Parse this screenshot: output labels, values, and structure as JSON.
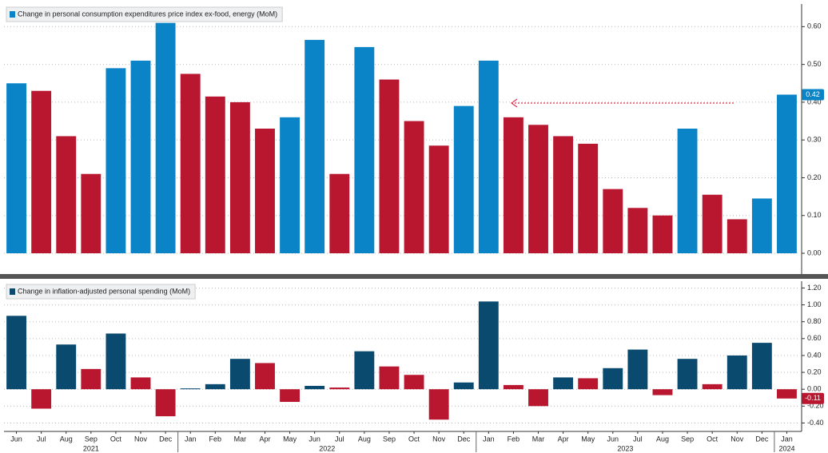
{
  "chart_data": [
    {
      "type": "bar",
      "series": [
        {
          "name": "Change in personal consumption expenditures price index ex-food, energy (MoM)",
          "values": [
            0.45,
            0.43,
            0.31,
            0.21,
            0.49,
            0.51,
            0.61,
            0.475,
            0.415,
            0.4,
            0.33,
            0.36,
            0.565,
            0.21,
            0.546,
            0.46,
            0.35,
            0.285,
            0.39,
            0.51,
            0.36,
            0.34,
            0.31,
            0.29,
            0.17,
            0.12,
            0.1,
            0.33,
            0.155,
            0.09,
            0.145,
            0.42
          ],
          "value_labels": [
            null,
            null,
            null,
            null,
            null,
            null,
            null,
            null,
            null,
            null,
            null,
            null,
            null,
            null,
            null,
            null,
            null,
            null,
            null,
            null,
            null,
            null,
            null,
            null,
            null,
            null,
            null,
            null,
            null,
            null,
            null,
            "0.42"
          ],
          "colors": [
            "#0a84c6",
            "#b8172f",
            "#b8172f",
            "#b8172f",
            "#0a84c6",
            "#0a84c6",
            "#0a84c6",
            "#b8172f",
            "#b8172f",
            "#b8172f",
            "#b8172f",
            "#0a84c6",
            "#0a84c6",
            "#b8172f",
            "#0a84c6",
            "#b8172f",
            "#b8172f",
            "#b8172f",
            "#0a84c6",
            "#0a84c6",
            "#b8172f",
            "#b8172f",
            "#b8172f",
            "#b8172f",
            "#b8172f",
            "#b8172f",
            "#b8172f",
            "#0a84c6",
            "#b8172f",
            "#b8172f",
            "#0a84c6",
            "#0a84c6"
          ],
          "legend_color": "#0a84c6"
        }
      ],
      "ylim": [
        -0.055,
        0.66
      ],
      "yticks": [
        {
          "value": 0,
          "label": "0.00"
        },
        {
          "value": 0.1,
          "label": "0.10"
        },
        {
          "value": 0.2,
          "label": "0.20"
        },
        {
          "value": 0.3,
          "label": "0.30"
        },
        {
          "value": 0.4,
          "label": "0.40"
        },
        {
          "value": 0.5,
          "label": "0.50"
        },
        {
          "value": 0.6,
          "label": "0.60"
        }
      ],
      "grid": true
    },
    {
      "type": "bar",
      "categories": [
        "Jun",
        "Jul",
        "Aug",
        "Sep",
        "Oct",
        "Nov",
        "Dec",
        "Jan",
        "Feb",
        "Mar",
        "Apr",
        "May",
        "Jun",
        "Jul",
        "Aug",
        "Sep",
        "Oct",
        "Nov",
        "Dec",
        "Jan",
        "Feb",
        "Mar",
        "Apr",
        "May",
        "Jun",
        "Jul",
        "Aug",
        "Sep",
        "Oct",
        "Nov",
        "Dec",
        "Jan"
      ],
      "years": [
        "2021",
        "2021",
        "2021",
        "2021",
        "2021",
        "2021",
        "2021",
        "2022",
        "2022",
        "2022",
        "2022",
        "2022",
        "2022",
        "2022",
        "2022",
        "2022",
        "2022",
        "2022",
        "2022",
        "2023",
        "2023",
        "2023",
        "2023",
        "2023",
        "2023",
        "2023",
        "2023",
        "2023",
        "2023",
        "2023",
        "2023",
        "2024"
      ],
      "series": [
        {
          "name": "Change in inflation-adjusted personal spending (MoM)",
          "values": [
            0.87,
            -0.23,
            0.53,
            0.24,
            0.66,
            0.14,
            -0.32,
            0.01,
            0.06,
            0.36,
            0.31,
            -0.15,
            0.04,
            0.02,
            0.45,
            0.27,
            0.17,
            -0.36,
            0.08,
            1.04,
            0.05,
            -0.2,
            0.14,
            0.13,
            0.25,
            0.47,
            -0.07,
            0.36,
            0.06,
            0.4,
            0.55,
            -0.11
          ],
          "value_labels": [
            null,
            null,
            null,
            null,
            null,
            null,
            null,
            null,
            null,
            null,
            null,
            null,
            null,
            null,
            null,
            null,
            null,
            null,
            null,
            null,
            null,
            null,
            null,
            null,
            null,
            null,
            null,
            null,
            null,
            null,
            null,
            "-0.11"
          ],
          "colors": [
            "#0b4a6f",
            "#b8172f",
            "#0b4a6f",
            "#b8172f",
            "#0b4a6f",
            "#b8172f",
            "#b8172f",
            "#0b4a6f",
            "#0b4a6f",
            "#0b4a6f",
            "#b8172f",
            "#b8172f",
            "#0b4a6f",
            "#b8172f",
            "#0b4a6f",
            "#b8172f",
            "#b8172f",
            "#b8172f",
            "#0b4a6f",
            "#0b4a6f",
            "#b8172f",
            "#b8172f",
            "#0b4a6f",
            "#b8172f",
            "#0b4a6f",
            "#0b4a6f",
            "#b8172f",
            "#0b4a6f",
            "#b8172f",
            "#0b4a6f",
            "#0b4a6f",
            "#b8172f"
          ],
          "legend_color": "#0b4a6f"
        }
      ],
      "ylim": [
        -0.5,
        1.28
      ],
      "yticks": [
        {
          "value": -0.4,
          "label": "-0.40"
        },
        {
          "value": -0.2,
          "label": "-0.20"
        },
        {
          "value": 0,
          "label": "0.00"
        },
        {
          "value": 0.2,
          "label": "0.20"
        },
        {
          "value": 0.4,
          "label": "0.40"
        },
        {
          "value": 0.6,
          "label": "0.60"
        },
        {
          "value": 0.8,
          "label": "0.80"
        },
        {
          "value": 1.0,
          "label": "1.00"
        },
        {
          "value": 1.2,
          "label": "1.20"
        }
      ],
      "grid": true
    }
  ]
}
